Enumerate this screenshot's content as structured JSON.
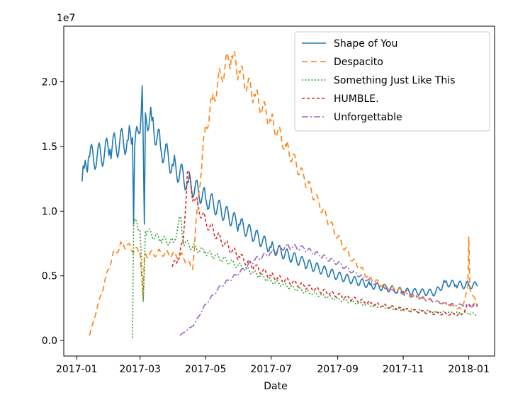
{
  "chart_data": {
    "type": "line",
    "title": "",
    "xlabel": "Date",
    "ylabel": "",
    "y_scale_label": "1e7",
    "x_start": "2017-01-06",
    "x_end": "2018-01-09",
    "xlim": [
      "2016-12-20",
      "2018-01-25"
    ],
    "ylim": [
      -0.12,
      2.43
    ],
    "x_ticks": [
      {
        "date": "2017-01-01",
        "label": "2017-01"
      },
      {
        "date": "2017-03-01",
        "label": "2017-03"
      },
      {
        "date": "2017-05-01",
        "label": "2017-05"
      },
      {
        "date": "2017-07-01",
        "label": "2017-07"
      },
      {
        "date": "2017-09-01",
        "label": "2017-09"
      },
      {
        "date": "2017-11-01",
        "label": "2017-11"
      },
      {
        "date": "2018-01-01",
        "label": "2018-01"
      }
    ],
    "y_ticks": [
      {
        "value": 0.0,
        "label": "0.0"
      },
      {
        "value": 0.5,
        "label": "0.5"
      },
      {
        "value": 1.0,
        "label": "1.0"
      },
      {
        "value": 1.5,
        "label": "1.5"
      },
      {
        "value": 2.0,
        "label": "2.0"
      }
    ],
    "grid": false,
    "legend_position": "top-right",
    "series": [
      {
        "name": "Shape of You",
        "color": "#1f77b4",
        "dash": "solid",
        "weekly_amplitude": 0.07,
        "points": [
          [
            "2017-01-06",
            1.23
          ],
          [
            "2017-01-08",
            1.33
          ],
          [
            "2017-01-12",
            1.42
          ],
          [
            "2017-01-20",
            1.42
          ],
          [
            "2017-02-01",
            1.48
          ],
          [
            "2017-02-10",
            1.53
          ],
          [
            "2017-02-18",
            1.55
          ],
          [
            "2017-02-22",
            1.57
          ],
          [
            "2017-02-23",
            0.9
          ],
          [
            "2017-02-24",
            1.5
          ],
          [
            "2017-02-28",
            1.6
          ],
          [
            "2017-03-03",
            1.97
          ],
          [
            "2017-03-05",
            0.9
          ],
          [
            "2017-03-06",
            1.76
          ],
          [
            "2017-03-12",
            1.7
          ],
          [
            "2017-03-20",
            1.5
          ],
          [
            "2017-04-01",
            1.35
          ],
          [
            "2017-04-15",
            1.22
          ],
          [
            "2017-05-01",
            1.1
          ],
          [
            "2017-06-01",
            0.9
          ],
          [
            "2017-07-01",
            0.72
          ],
          [
            "2017-08-01",
            0.6
          ],
          [
            "2017-09-01",
            0.5
          ],
          [
            "2017-10-01",
            0.43
          ],
          [
            "2017-11-01",
            0.38
          ],
          [
            "2017-12-01",
            0.37
          ],
          [
            "2017-12-10",
            0.45
          ],
          [
            "2017-12-20",
            0.43
          ],
          [
            "2018-01-01",
            0.43
          ],
          [
            "2018-01-05",
            0.43
          ],
          [
            "2018-01-09",
            0.42
          ]
        ]
      },
      {
        "name": "Despacito",
        "color": "#ff7f0e",
        "dash": "8,5",
        "weekly_amplitude": 0.04,
        "points": [
          [
            "2017-01-13",
            0.04
          ],
          [
            "2017-01-20",
            0.25
          ],
          [
            "2017-01-27",
            0.45
          ],
          [
            "2017-02-03",
            0.65
          ],
          [
            "2017-02-12",
            0.75
          ],
          [
            "2017-02-24",
            0.7
          ],
          [
            "2017-03-01",
            0.68
          ],
          [
            "2017-03-04",
            0.32
          ],
          [
            "2017-03-05",
            0.66
          ],
          [
            "2017-03-20",
            0.68
          ],
          [
            "2017-04-10",
            0.65
          ],
          [
            "2017-04-19",
            0.55
          ],
          [
            "2017-04-23",
            1.0
          ],
          [
            "2017-04-30",
            1.6
          ],
          [
            "2017-05-07",
            1.85
          ],
          [
            "2017-05-15",
            2.05
          ],
          [
            "2017-05-25",
            2.2
          ],
          [
            "2017-06-01",
            2.08
          ],
          [
            "2017-06-15",
            1.9
          ],
          [
            "2017-07-01",
            1.7
          ],
          [
            "2017-07-15",
            1.5
          ],
          [
            "2017-08-01",
            1.25
          ],
          [
            "2017-08-15",
            1.05
          ],
          [
            "2017-09-01",
            0.8
          ],
          [
            "2017-09-15",
            0.62
          ],
          [
            "2017-10-01",
            0.48
          ],
          [
            "2017-10-15",
            0.42
          ],
          [
            "2017-11-01",
            0.38
          ],
          [
            "2017-11-15",
            0.34
          ],
          [
            "2017-12-01",
            0.3
          ],
          [
            "2017-12-15",
            0.27
          ],
          [
            "2017-12-25",
            0.24
          ],
          [
            "2017-12-31",
            0.4
          ],
          [
            "2018-01-01",
            0.8
          ],
          [
            "2018-01-02",
            0.4
          ],
          [
            "2018-01-09",
            0.27
          ]
        ]
      },
      {
        "name": "Something Just Like This",
        "color": "#2ca02c",
        "dash": "2,2.5",
        "weekly_amplitude": 0.04,
        "points": [
          [
            "2017-02-22",
            0.02
          ],
          [
            "2017-02-23",
            0.9
          ],
          [
            "2017-02-26",
            0.92
          ],
          [
            "2017-03-01",
            0.85
          ],
          [
            "2017-03-04",
            0.3
          ],
          [
            "2017-03-06",
            0.85
          ],
          [
            "2017-03-20",
            0.78
          ],
          [
            "2017-04-01",
            0.76
          ],
          [
            "2017-04-08",
            0.95
          ],
          [
            "2017-04-10",
            0.76
          ],
          [
            "2017-05-01",
            0.68
          ],
          [
            "2017-06-01",
            0.58
          ],
          [
            "2017-07-01",
            0.46
          ],
          [
            "2017-08-01",
            0.38
          ],
          [
            "2017-09-01",
            0.32
          ],
          [
            "2017-10-01",
            0.27
          ],
          [
            "2017-11-01",
            0.24
          ],
          [
            "2017-12-01",
            0.22
          ],
          [
            "2018-01-01",
            0.21
          ],
          [
            "2018-01-09",
            0.2
          ]
        ]
      },
      {
        "name": "HUMBLE.",
        "color": "#d62728",
        "dash": "4,3",
        "weekly_amplitude": 0.05,
        "points": [
          [
            "2017-03-31",
            0.57
          ],
          [
            "2017-04-05",
            0.62
          ],
          [
            "2017-04-10",
            0.75
          ],
          [
            "2017-04-14",
            1.3
          ],
          [
            "2017-04-20",
            1.1
          ],
          [
            "2017-05-01",
            0.92
          ],
          [
            "2017-05-15",
            0.78
          ],
          [
            "2017-06-01",
            0.65
          ],
          [
            "2017-06-15",
            0.57
          ],
          [
            "2017-07-01",
            0.5
          ],
          [
            "2017-08-01",
            0.42
          ],
          [
            "2017-09-01",
            0.35
          ],
          [
            "2017-10-01",
            0.29
          ],
          [
            "2017-11-01",
            0.24
          ],
          [
            "2017-12-01",
            0.21
          ],
          [
            "2017-12-25",
            0.2
          ],
          [
            "2018-01-01",
            0.28
          ],
          [
            "2018-01-09",
            0.27
          ]
        ]
      },
      {
        "name": "Unforgettable",
        "color": "#9467bd",
        "dash": "9,3,2,3",
        "weekly_amplitude": 0.03,
        "points": [
          [
            "2017-04-07",
            0.04
          ],
          [
            "2017-04-20",
            0.12
          ],
          [
            "2017-05-01",
            0.28
          ],
          [
            "2017-05-15",
            0.42
          ],
          [
            "2017-06-01",
            0.52
          ],
          [
            "2017-06-15",
            0.62
          ],
          [
            "2017-07-01",
            0.68
          ],
          [
            "2017-07-15",
            0.73
          ],
          [
            "2017-08-01",
            0.71
          ],
          [
            "2017-08-15",
            0.66
          ],
          [
            "2017-09-01",
            0.6
          ],
          [
            "2017-09-15",
            0.53
          ],
          [
            "2017-10-01",
            0.46
          ],
          [
            "2017-10-15",
            0.4
          ],
          [
            "2017-11-01",
            0.36
          ],
          [
            "2017-11-15",
            0.33
          ],
          [
            "2017-12-01",
            0.3
          ],
          [
            "2017-12-15",
            0.28
          ],
          [
            "2018-01-01",
            0.27
          ],
          [
            "2018-01-09",
            0.26
          ]
        ]
      }
    ]
  }
}
